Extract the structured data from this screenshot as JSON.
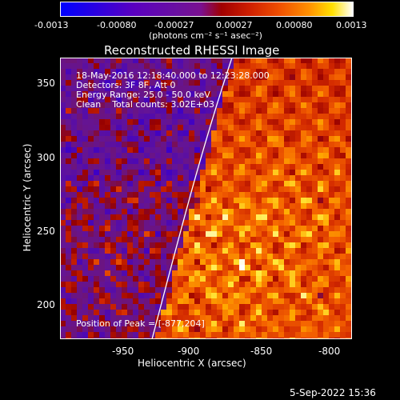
{
  "colorbar": {
    "ticks": [
      "-0.0013",
      "-0.00080",
      "-0.00027",
      "0.00027",
      "0.00080",
      "0.0013"
    ],
    "units": "(photons cm⁻² s⁻¹ asec⁻²)"
  },
  "plot": {
    "title": "Reconstructed RHESSI Image",
    "info_lines": [
      "18-May-2016 12:18:40.000 to 12:23:28.000",
      "Detectors: 3F 8F, Att 0",
      "Energy Range: 25.0 - 50.0 keV",
      "Clean    Total counts: 3.02E+03"
    ],
    "peak_label": "Position of Peak = [-877,204]",
    "xlabel": "Heliocentric X (arcsec)",
    "ylabel": "Heliocentric Y (arcsec)",
    "xticks": [
      "-950",
      "-900",
      "-850",
      "-800"
    ],
    "yticks": [
      "350",
      "300",
      "250",
      "200"
    ]
  },
  "footer": {
    "timestamp": "5-Sep-2022 15:36"
  }
}
